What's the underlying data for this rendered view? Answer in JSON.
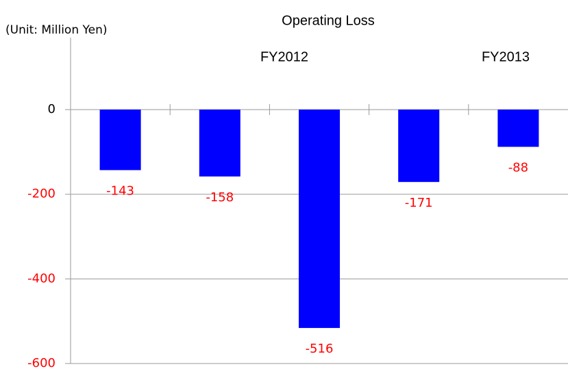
{
  "chart_data": {
    "type": "bar",
    "title": "Operating Loss",
    "annotations": [
      "(Unit: Million Yen)",
      "FY2012",
      "FY2013"
    ],
    "categories": [
      null,
      null,
      null,
      null,
      null
    ],
    "values": [
      -143,
      -158,
      -516,
      -171,
      -88
    ],
    "color": "#0000ff",
    "label_color": "#ff0000",
    "ylim": [
      -600,
      170
    ],
    "yticks": [
      0,
      -200,
      -400,
      -600
    ],
    "grid": true
  }
}
